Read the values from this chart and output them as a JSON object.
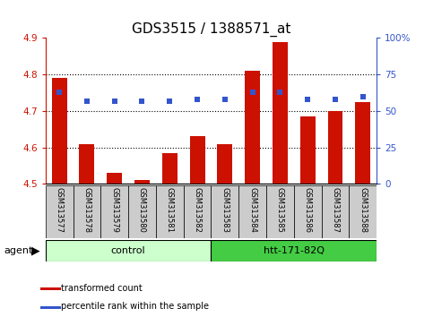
{
  "title": "GDS3515 / 1388571_at",
  "categories": [
    "GSM313577",
    "GSM313578",
    "GSM313579",
    "GSM313580",
    "GSM313581",
    "GSM313582",
    "GSM313583",
    "GSM313584",
    "GSM313585",
    "GSM313586",
    "GSM313587",
    "GSM313588"
  ],
  "bar_values": [
    4.79,
    4.61,
    4.53,
    4.51,
    4.585,
    4.63,
    4.61,
    4.81,
    4.89,
    4.685,
    4.7,
    4.725
  ],
  "percentile_values": [
    63,
    57,
    57,
    57,
    57,
    58,
    58,
    63,
    63,
    58,
    58,
    60
  ],
  "ylim": [
    4.5,
    4.9
  ],
  "ylim_right": [
    0,
    100
  ],
  "yticks_left": [
    4.5,
    4.6,
    4.7,
    4.8,
    4.9
  ],
  "yticks_right": [
    0,
    25,
    50,
    75,
    100
  ],
  "ytick_labels_right": [
    "0",
    "25",
    "50",
    "75",
    "100%"
  ],
  "bar_color": "#cc1100",
  "dot_color": "#3355cc",
  "bar_bottom": 4.5,
  "dotted_gridlines": [
    4.6,
    4.7,
    4.8
  ],
  "control_label": "control",
  "treatment_label": "htt-171-82Q",
  "control_count": 6,
  "treatment_count": 6,
  "agent_label": "agent",
  "legend_bar_label": "transformed count",
  "legend_dot_label": "percentile rank within the sample",
  "control_bg": "#ccffcc",
  "treatment_bg": "#44cc44",
  "xlabel_bg": "#cccccc",
  "title_fontsize": 11,
  "tick_fontsize": 7.5,
  "label_fontsize": 8,
  "cat_fontsize": 6
}
